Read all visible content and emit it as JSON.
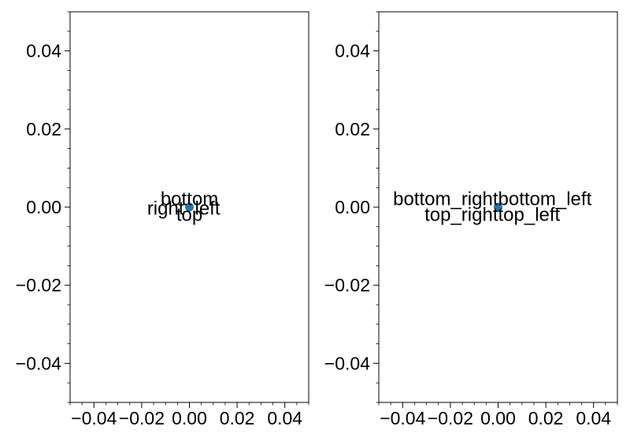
{
  "chart_data": [
    {
      "type": "scatter",
      "title": "",
      "xlabel": "",
      "ylabel": "",
      "xlim": [
        -0.05,
        0.05
      ],
      "ylim": [
        -0.05,
        0.05
      ],
      "grid": false,
      "points": [
        {
          "x": 0.0,
          "y": 0.0
        }
      ],
      "marker_color": "#1f77b4",
      "xticks": [
        -0.04,
        -0.02,
        0.0,
        0.02,
        0.04
      ],
      "xtick_labels": [
        "−0.04",
        "−0.02",
        "0.00",
        "0.02",
        "0.04"
      ],
      "yticks": [
        -0.04,
        -0.02,
        0.0,
        0.02,
        0.04
      ],
      "ytick_labels": [
        "−0.04",
        "−0.02",
        "0.00",
        "0.02",
        "0.04"
      ],
      "annotations": [
        {
          "text": "bottom",
          "x": 0.0,
          "y": 0.0,
          "anchor": "bottom"
        },
        {
          "text": "right",
          "x": 0.0,
          "y": 0.0,
          "anchor": "right"
        },
        {
          "text": "left",
          "x": 0.0,
          "y": 0.0,
          "anchor": "left"
        },
        {
          "text": "top",
          "x": 0.0,
          "y": 0.0,
          "anchor": "top"
        }
      ]
    },
    {
      "type": "scatter",
      "title": "",
      "xlabel": "",
      "ylabel": "",
      "xlim": [
        -0.05,
        0.05
      ],
      "ylim": [
        -0.05,
        0.05
      ],
      "grid": false,
      "points": [
        {
          "x": 0.0,
          "y": 0.0
        }
      ],
      "marker_color": "#1f77b4",
      "xticks": [
        -0.04,
        -0.02,
        0.0,
        0.02,
        0.04
      ],
      "xtick_labels": [
        "−0.04",
        "−0.02",
        "0.00",
        "0.02",
        "0.04"
      ],
      "yticks": [
        -0.04,
        -0.02,
        0.0,
        0.02,
        0.04
      ],
      "ytick_labels": [
        "−0.04",
        "−0.02",
        "0.00",
        "0.02",
        "0.04"
      ],
      "annotations": [
        {
          "text": "bottom_right",
          "x": 0.0,
          "y": 0.0,
          "anchor": "bottom_right"
        },
        {
          "text": "bottom_left",
          "x": 0.0,
          "y": 0.0,
          "anchor": "bottom_left"
        },
        {
          "text": "top_right",
          "x": 0.0,
          "y": 0.0,
          "anchor": "top_right"
        },
        {
          "text": "top_left",
          "x": 0.0,
          "y": 0.0,
          "anchor": "top_left"
        }
      ]
    }
  ]
}
